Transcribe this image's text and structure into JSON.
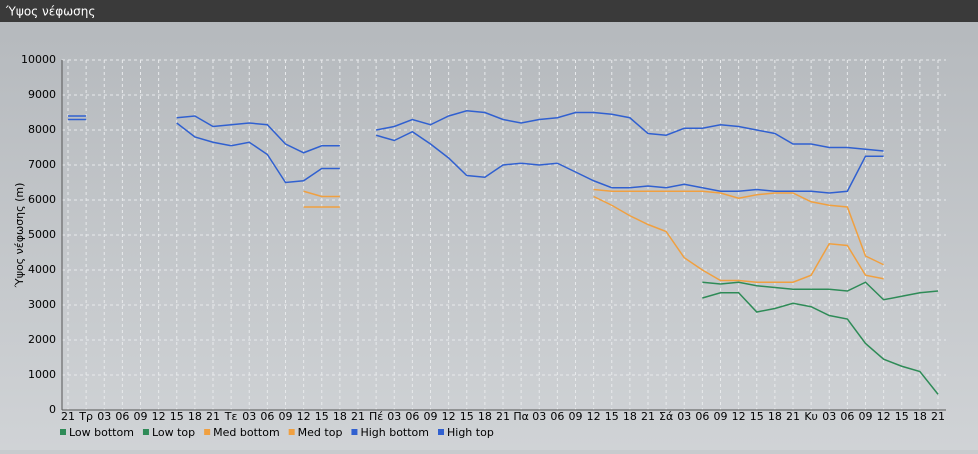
{
  "chart_data": {
    "type": "line",
    "title": "Ύψος νέφωσης",
    "y_label": "Ύψος νέφωσης (m)",
    "categories": [
      "21",
      "Τρ",
      "03",
      "06",
      "09",
      "12",
      "15",
      "18",
      "21",
      "Τε",
      "03",
      "06",
      "09",
      "12",
      "15",
      "18",
      "21",
      "Πέ",
      "03",
      "06",
      "09",
      "12",
      "15",
      "18",
      "21",
      "Πα",
      "03",
      "06",
      "09",
      "12",
      "15",
      "18",
      "21",
      "Σά",
      "03",
      "06",
      "09",
      "12",
      "15",
      "18",
      "21",
      "Κυ",
      "03",
      "06",
      "09",
      "12",
      "15",
      "18",
      "21"
    ],
    "ylim": [
      0,
      10000
    ],
    "yticks": [
      0,
      1000,
      2000,
      3000,
      4000,
      5000,
      6000,
      7000,
      8000,
      9000,
      10000
    ],
    "grid": true,
    "series": [
      {
        "name": "Low bottom",
        "color": "#2e8b57",
        "values": [
          null,
          null,
          null,
          null,
          null,
          null,
          null,
          null,
          null,
          null,
          null,
          null,
          null,
          null,
          null,
          null,
          null,
          null,
          null,
          null,
          null,
          null,
          null,
          null,
          null,
          null,
          null,
          null,
          null,
          null,
          null,
          null,
          null,
          null,
          null,
          3200,
          3350,
          3350,
          2800,
          2900,
          3050,
          2950,
          2700,
          2600,
          1900,
          1450,
          1250,
          1100,
          450
        ]
      },
      {
        "name": "Low top",
        "color": "#2e8b57",
        "values": [
          null,
          null,
          null,
          null,
          null,
          null,
          null,
          null,
          null,
          null,
          null,
          null,
          null,
          null,
          null,
          null,
          null,
          null,
          null,
          null,
          null,
          null,
          null,
          null,
          null,
          null,
          null,
          null,
          null,
          null,
          null,
          null,
          null,
          null,
          null,
          3650,
          3600,
          3650,
          3550,
          3500,
          3450,
          3450,
          3450,
          3400,
          3650,
          3150,
          3250,
          3350,
          3400
        ]
      },
      {
        "name": "Med bottom",
        "color": "#f0a040",
        "values": [
          null,
          null,
          null,
          null,
          null,
          null,
          null,
          null,
          null,
          null,
          null,
          null,
          null,
          5800,
          5800,
          5800,
          null,
          null,
          null,
          null,
          null,
          null,
          null,
          null,
          null,
          null,
          null,
          null,
          null,
          6100,
          5850,
          5550,
          5300,
          5100,
          4350,
          4000,
          3700,
          3700,
          3650,
          3650,
          3650,
          3850,
          4750,
          4700,
          3850,
          3750,
          null,
          null,
          null
        ]
      },
      {
        "name": "Med top",
        "color": "#f0a040",
        "values": [
          null,
          null,
          null,
          null,
          null,
          null,
          null,
          null,
          null,
          null,
          null,
          null,
          null,
          6250,
          6100,
          6100,
          null,
          null,
          null,
          null,
          null,
          null,
          null,
          null,
          null,
          null,
          null,
          null,
          null,
          6300,
          6250,
          6250,
          6250,
          6250,
          6250,
          6250,
          6200,
          6050,
          6150,
          6200,
          6200,
          5950,
          5850,
          5800,
          4400,
          4150,
          null,
          null,
          null
        ]
      },
      {
        "name": "High bottom",
        "color": "#3060d0",
        "values": [
          8300,
          8300,
          null,
          null,
          null,
          null,
          8200,
          7800,
          7650,
          7550,
          7650,
          7300,
          6500,
          6550,
          6900,
          6900,
          null,
          7850,
          7700,
          7950,
          7600,
          7200,
          6700,
          6650,
          7000,
          7050,
          7000,
          7050,
          6800,
          6550,
          6350,
          6350,
          6400,
          6350,
          6450,
          6350,
          6250,
          6250,
          6300,
          6250,
          6250,
          6250,
          6200,
          6250,
          7250,
          7250,
          null,
          null,
          null
        ]
      },
      {
        "name": "High top",
        "color": "#3060d0",
        "values": [
          8400,
          8400,
          null,
          null,
          null,
          null,
          8350,
          8400,
          8100,
          8150,
          8200,
          8150,
          7600,
          7350,
          7550,
          7550,
          null,
          8000,
          8100,
          8300,
          8150,
          8400,
          8550,
          8500,
          8300,
          8200,
          8300,
          8350,
          8500,
          8500,
          8450,
          8350,
          7900,
          7850,
          8050,
          8050,
          8150,
          8100,
          8000,
          7900,
          7600,
          7600,
          7500,
          7500,
          7450,
          7400,
          null,
          null,
          null
        ]
      }
    ]
  }
}
